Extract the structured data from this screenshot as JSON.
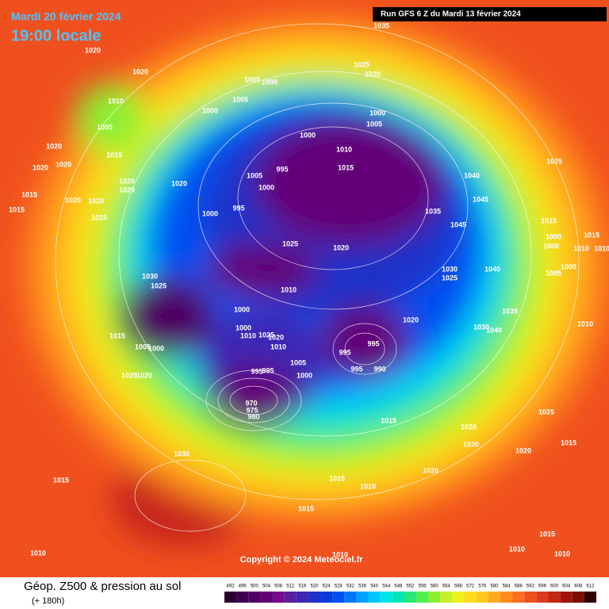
{
  "header": {
    "date": "Mardi 20 février 2024",
    "time": "19:00 locale",
    "run": "Run GFS 6 Z du Mardi 13 février 2024"
  },
  "copyright": "Copyright © 2024 Meteociel.fr",
  "legend": {
    "title": "Géop. Z500 & pression au sol",
    "lead": "(+ 180h)",
    "ticks": [
      492,
      496,
      500,
      504,
      508,
      512,
      516,
      520,
      524,
      528,
      532,
      536,
      540,
      544,
      548,
      552,
      556,
      560,
      564,
      568,
      572,
      576,
      580,
      584,
      588,
      592,
      596,
      600,
      604,
      608,
      612
    ],
    "colors": [
      "#2a0030",
      "#3c0050",
      "#500064",
      "#640078",
      "#780a8c",
      "#5a1ea0",
      "#3c28b4",
      "#1e32c8",
      "#0a3cdc",
      "#0050f0",
      "#0078f8",
      "#00a0ff",
      "#00c8ff",
      "#00e6e6",
      "#00e6b4",
      "#28e678",
      "#50f050",
      "#8cf032",
      "#c8f028",
      "#f0f01e",
      "#ffdc1e",
      "#ffc81e",
      "#ffaa1e",
      "#ff8c1e",
      "#ff6e1e",
      "#f0501e",
      "#dc3c1e",
      "#be2814",
      "#a0140a",
      "#781000",
      "#300000"
    ]
  },
  "map": {
    "isobar_labels": [
      1020,
      1020,
      1010,
      1005,
      1020,
      1015,
      1020,
      1020,
      1020,
      1020,
      1015,
      1015,
      1020,
      1020,
      1015,
      1020,
      1035,
      1025,
      1020,
      1000,
      1000,
      1005,
      1000,
      1000,
      1005,
      1000,
      1010,
      995,
      1015,
      1005,
      1000,
      1040,
      1025,
      995,
      1000,
      1035,
      1045,
      1045,
      1015,
      1000,
      1000,
      1015,
      1010,
      1010,
      1025,
      1020,
      1030,
      1025,
      1040,
      1005,
      1000,
      1030,
      1025,
      1010,
      1035,
      1030,
      1040,
      1010,
      1020,
      1000,
      1000,
      1015,
      1010,
      1025,
      1020,
      1010,
      1005,
      1000,
      995,
      995,
      995,
      990,
      1005,
      1000,
      995,
      995,
      1025,
      1020,
      970,
      975,
      980,
      1015,
      1020,
      1020,
      1020,
      1025,
      1015,
      1030,
      1015,
      1015,
      1010,
      1020,
      1015,
      1010,
      1010,
      1015,
      1010,
      1010
    ]
  }
}
